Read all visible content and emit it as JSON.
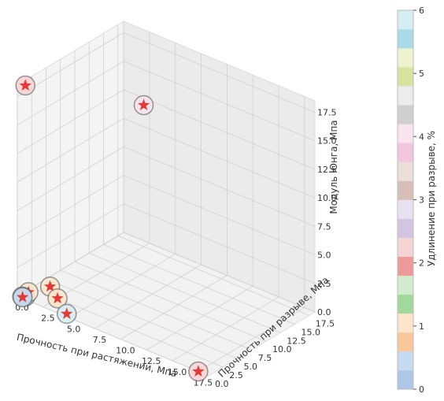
{
  "chart_data": {
    "type": "scatter3d",
    "axes": {
      "x": {
        "label": "Прочность при растяжении, Мпа",
        "range": [
          0,
          18.5
        ],
        "ticks": [
          "0.0",
          "2.5",
          "5.0",
          "7.5",
          "10.0",
          "12.5",
          "15.0",
          "17.5"
        ]
      },
      "y": {
        "label": "Прочность при разрыве, Мпа",
        "range": [
          0,
          18.5
        ],
        "ticks": [
          "0.0",
          "2.5",
          "5.0",
          "7.5",
          "10.0",
          "12.5",
          "15.0",
          "17.5"
        ]
      },
      "z": {
        "label": "Модуль Юнга, Мпа",
        "range": [
          0,
          18.5
        ],
        "ticks": [
          "0.0",
          "2.5",
          "5.0",
          "7.5",
          "10.0",
          "12.5",
          "15.0",
          "17.5"
        ]
      }
    },
    "grid": true,
    "colorbar": {
      "label": "Удлинение при разрыве, %",
      "range": [
        0,
        6
      ],
      "ticks": [
        "0",
        "1",
        "2",
        "3",
        "4",
        "5",
        "6"
      ],
      "colors": [
        "#aec7e8",
        "#c6dbef",
        "#f9c79a",
        "#fde5cc",
        "#a1d99b",
        "#d2ebcd",
        "#ef9a9a",
        "#f7d4d4",
        "#d3c4e3",
        "#e8e1ef",
        "#d7bfb7",
        "#eadfdb",
        "#f1c6de",
        "#f9e3ee",
        "#cfcfcf",
        "#ececec",
        "#d8e39f",
        "#eef2cf",
        "#a8dbe7",
        "#d5edf3"
      ]
    },
    "points": [
      {
        "x": 0.5,
        "y": 0.5,
        "z": 18.5,
        "elongation": 2.3
      },
      {
        "x": 7.5,
        "y": 8.5,
        "z": 17.0,
        "elongation": 4.0
      },
      {
        "x": 17.5,
        "y": 0.0,
        "z": 0.0,
        "elongation": 2.4
      },
      {
        "x": 1.5,
        "y": 3.0,
        "z": 0.5,
        "elongation": 1.2
      },
      {
        "x": 2.5,
        "y": 2.5,
        "z": 0.0,
        "elongation": 0.9
      },
      {
        "x": 0.8,
        "y": 0.5,
        "z": 0.5,
        "elongation": 1.1
      },
      {
        "x": 0.5,
        "y": 0.5,
        "z": 0.0,
        "elongation": 0.2
      },
      {
        "x": 0.3,
        "y": 0.3,
        "z": 0.0,
        "elongation": 0.1
      },
      {
        "x": 0.4,
        "y": 0.2,
        "z": 0.0,
        "elongation": 0.4
      },
      {
        "x": 4.5,
        "y": 0.5,
        "z": 0.0,
        "elongation": 5.7
      }
    ]
  }
}
